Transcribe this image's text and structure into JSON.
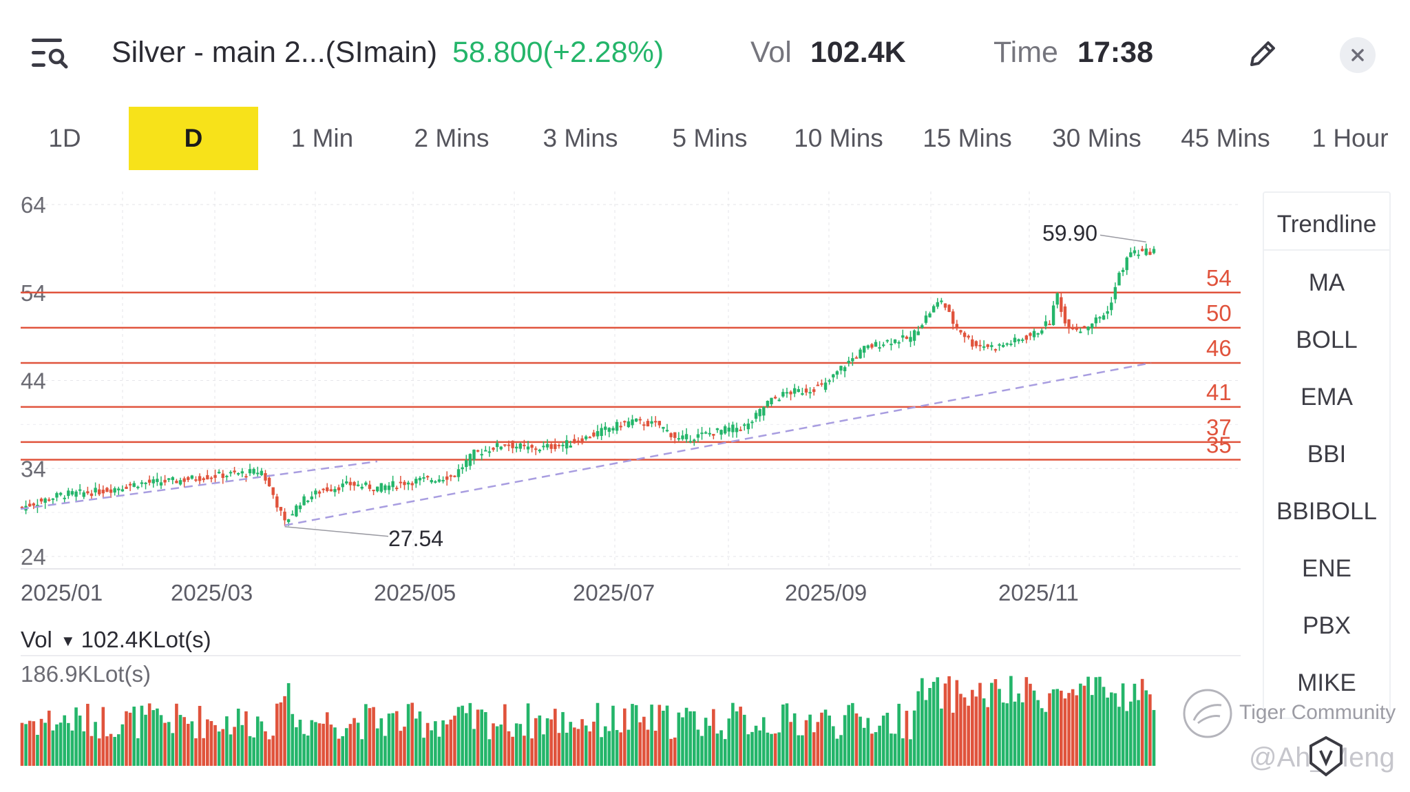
{
  "header": {
    "title": "Silver - main 2...(SImain)",
    "price": "58.800(+2.28%)",
    "vol_label": "Vol",
    "vol_value": "102.4K",
    "time_label": "Time",
    "time_value": "17:38",
    "menu_icon": "search-list-icon",
    "edit_icon": "pencil-icon",
    "close_icon": "close-icon",
    "colors": {
      "up": "#24b56a",
      "down": "#e0533c",
      "accent": "#f7e21a"
    }
  },
  "tabs": [
    "1D",
    "D",
    "1 Min",
    "2 Mins",
    "3 Mins",
    "5 Mins",
    "10 Mins",
    "15 Mins",
    "30 Mins",
    "45 Mins",
    "1 Hour"
  ],
  "active_tab": "D",
  "volume": {
    "label": "Vol",
    "current": "102.4KLot(s)",
    "max_label": "186.9KLot(s)"
  },
  "indicators": [
    "Trendline",
    "MA",
    "BOLL",
    "EMA",
    "BBI",
    "BBIBOLL",
    "ENE",
    "PBX",
    "MIKE"
  ],
  "watermark": {
    "brand": "Tiger Community",
    "user": "@Ah_Meng"
  },
  "chart_data": {
    "type": "candlestick",
    "y_ticks": [
      "64",
      "54",
      "44",
      "34",
      "24"
    ],
    "ylim": [
      24,
      64
    ],
    "x_labels": [
      "2025/01",
      "2025/03",
      "2025/05",
      "2025/07",
      "2025/09",
      "2025/11"
    ],
    "horizontal_levels": [
      54,
      50,
      46,
      41,
      37,
      35
    ],
    "annotations": [
      {
        "label": "59.90",
        "value": 59.9,
        "kind": "high"
      },
      {
        "label": "27.54",
        "value": 27.54,
        "kind": "low"
      }
    ],
    "trendlines": "dashed purple support lines",
    "series": [
      {
        "close_path": [
          [
            0,
            29.6
          ],
          [
            10,
            31.0
          ],
          [
            20,
            31.4
          ],
          [
            30,
            32.3
          ],
          [
            40,
            32.6
          ],
          [
            48,
            33.1
          ],
          [
            58,
            33.5
          ],
          [
            62,
            33.7
          ],
          [
            65,
            31.0
          ],
          [
            68,
            27.8
          ],
          [
            72,
            30.2
          ],
          [
            78,
            31.6
          ],
          [
            85,
            32.2
          ],
          [
            92,
            31.8
          ],
          [
            100,
            32.5
          ],
          [
            108,
            32.9
          ],
          [
            112,
            33.3
          ],
          [
            117,
            35.7
          ],
          [
            125,
            36.8
          ],
          [
            132,
            36.2
          ],
          [
            140,
            36.7
          ],
          [
            145,
            37.3
          ],
          [
            152,
            38.6
          ],
          [
            158,
            39.4
          ],
          [
            165,
            38.9
          ],
          [
            170,
            37.3
          ],
          [
            176,
            37.8
          ],
          [
            182,
            38.4
          ],
          [
            188,
            38.9
          ],
          [
            193,
            41.5
          ],
          [
            198,
            42.6
          ],
          [
            203,
            42.9
          ],
          [
            208,
            43.5
          ],
          [
            212,
            45.4
          ],
          [
            218,
            47.6
          ],
          [
            224,
            48.5
          ],
          [
            230,
            48.8
          ],
          [
            235,
            51.8
          ],
          [
            238,
            53.2
          ],
          [
            241,
            50.6
          ],
          [
            246,
            48.2
          ],
          [
            252,
            47.8
          ],
          [
            258,
            48.6
          ],
          [
            262,
            49.3
          ],
          [
            266,
            50.7
          ],
          [
            268,
            53.8
          ],
          [
            270,
            50.5
          ],
          [
            274,
            49.8
          ],
          [
            278,
            50.9
          ],
          [
            281,
            51.8
          ],
          [
            284,
            56.0
          ],
          [
            287,
            58.6
          ],
          [
            290,
            58.5
          ],
          [
            293,
            58.8
          ]
        ]
      }
    ],
    "volume_max": "186.9KLot(s)"
  }
}
